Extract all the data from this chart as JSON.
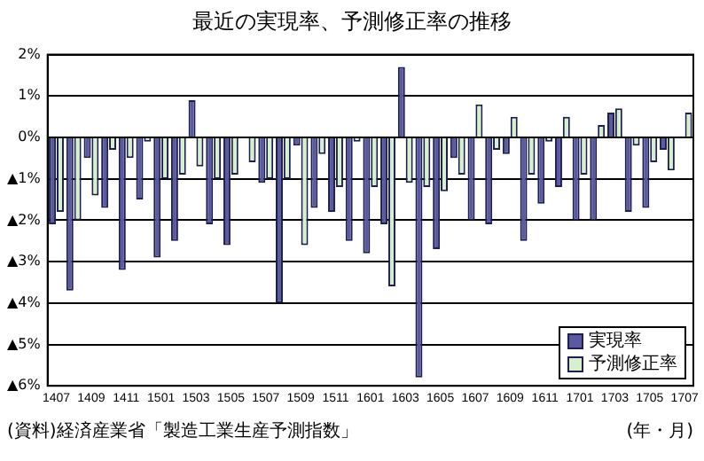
{
  "chart_data": {
    "type": "bar",
    "title": "最近の実現率、予測修正率の推移",
    "xlabel": "(年・月)",
    "annotations": [
      "(資料)経済産業省「製造工業生産予測指数」"
    ],
    "categories": [
      "1407",
      null,
      "1409",
      null,
      "1411",
      null,
      "1501",
      null,
      "1503",
      null,
      "1505",
      null,
      "1507",
      null,
      "1509",
      null,
      "1511",
      null,
      "1601",
      null,
      "1603",
      null,
      "1605",
      null,
      "1607",
      null,
      "1609",
      null,
      "1611",
      null,
      "1701",
      null,
      "1703",
      null,
      "1705",
      null,
      "1707"
    ],
    "series": [
      {
        "name": "実現率",
        "color": "#5a5aa0",
        "values": [
          -2.1,
          -3.7,
          -0.5,
          -1.7,
          -3.2,
          -1.5,
          -2.9,
          -2.5,
          0.9,
          -2.1,
          -2.6,
          0,
          -1.1,
          -4.0,
          -0.2,
          -1.7,
          -1.8,
          -2.5,
          -2.8,
          -2.1,
          1.7,
          -5.8,
          -2.7,
          -0.5,
          -2.0,
          -2.1,
          -0.4,
          -2.5,
          -1.6,
          -1.2,
          -2.0,
          -2.0,
          0.6,
          -1.8,
          -1.7,
          -0.3,
          0
        ]
      },
      {
        "name": "予測修正率",
        "color": "#d4f0cc",
        "values": [
          -1.8,
          -2.0,
          -1.4,
          -0.3,
          -0.5,
          -0.1,
          -1.0,
          -0.9,
          -0.7,
          -1.0,
          -0.9,
          -0.6,
          -1.0,
          -1.0,
          -2.6,
          -0.4,
          -1.2,
          -0.1,
          -1.2,
          -3.6,
          -1.1,
          -1.2,
          -1.3,
          -0.9,
          0.8,
          -0.3,
          0.5,
          -0.9,
          -0.1,
          0.5,
          -0.9,
          0.3,
          0.7,
          -0.2,
          -0.6,
          -0.8,
          0.6
        ]
      }
    ],
    "ylim": [
      -6,
      2
    ],
    "yticks": [
      {
        "value": -6,
        "label": "▲6%"
      },
      {
        "value": -5,
        "label": "▲5%"
      },
      {
        "value": -4,
        "label": "▲4%"
      },
      {
        "value": -3,
        "label": "▲3%"
      },
      {
        "value": -2,
        "label": "▲2%"
      },
      {
        "value": -1,
        "label": "▲1%"
      },
      {
        "value": 0,
        "label": "0%"
      },
      {
        "value": 1,
        "label": "1%"
      },
      {
        "value": 2,
        "label": "2%"
      }
    ],
    "grid": "y",
    "legend": "bottom right"
  }
}
